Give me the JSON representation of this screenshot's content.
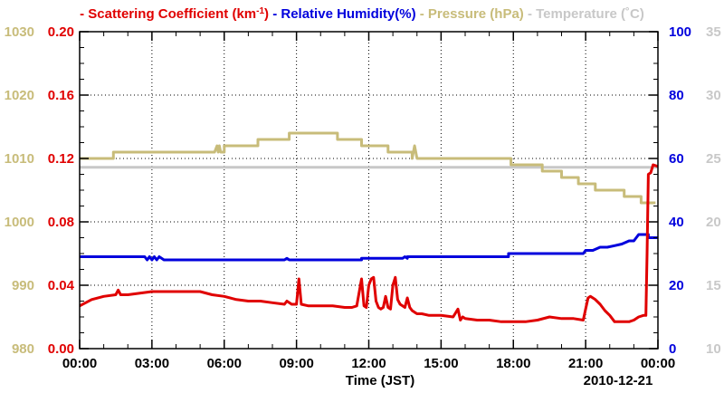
{
  "chart_data": {
    "type": "line",
    "title_items": [
      {
        "dash": "-",
        "text": "Scattering Coefficient (km",
        "sup": "-1",
        "close": ")",
        "color": "#e00000"
      },
      {
        "dash": "-",
        "text": "Relative Humidity(%)",
        "color": "#0000dd"
      },
      {
        "dash": "-",
        "text": "Pressure (hPa)",
        "color": "#c8bc7a"
      },
      {
        "dash": "-",
        "text": "Temperature (˚C)",
        "color": "#c8c8c8"
      }
    ],
    "xlabel": "Time (JST)",
    "date_label": "2010-12-21",
    "x_range": [
      0,
      24
    ],
    "x_ticks": [
      0,
      3,
      6,
      9,
      12,
      15,
      18,
      21,
      24
    ],
    "x_tick_labels": [
      "00:00",
      "03:00",
      "06:00",
      "09:00",
      "12:00",
      "15:00",
      "18:00",
      "21:00",
      "00:00"
    ],
    "axes": {
      "scattering": {
        "range": [
          0,
          0.2
        ],
        "ticks": [
          "0.00",
          "0.04",
          "0.08",
          "0.12",
          "0.16",
          "0.20"
        ],
        "color": "#e00000"
      },
      "pressure": {
        "range": [
          980,
          1030
        ],
        "ticks": [
          "980",
          "990",
          "1000",
          "1010",
          "1020",
          "1030"
        ],
        "color": "#c8bc7a"
      },
      "humidity": {
        "range": [
          0,
          100
        ],
        "ticks": [
          "0",
          "20",
          "40",
          "60",
          "80",
          "100"
        ],
        "color": "#0000dd"
      },
      "temperature": {
        "range": [
          10,
          35
        ],
        "ticks": [
          "10",
          "15",
          "20",
          "25",
          "30",
          "35"
        ],
        "color": "#c8c8c8"
      }
    },
    "series": [
      {
        "name": "Temperature",
        "axis": "temperature",
        "color": "#c8c8c8",
        "x": [
          0,
          24
        ],
        "y": [
          24.3,
          24.3
        ]
      },
      {
        "name": "Pressure",
        "axis": "pressure",
        "color": "#c8bc7a",
        "x": [
          0,
          1.4,
          1.4,
          5.6,
          5.7,
          5.75,
          5.8,
          5.85,
          6.0,
          6.0,
          7.4,
          7.4,
          8.7,
          8.7,
          10.7,
          10.7,
          11.7,
          11.7,
          12.8,
          12.8,
          13.8,
          13.8,
          13.9,
          14.0,
          14.1,
          14.1,
          15.0,
          15.0,
          16.0,
          16.0,
          17.9,
          17.9,
          19.2,
          19.2,
          20.0,
          20.0,
          20.7,
          20.7,
          21.4,
          21.4,
          21.7,
          21.7,
          22.6,
          22.6,
          23.3,
          23.3,
          23.9
        ],
        "y": [
          1010,
          1010,
          1011,
          1011,
          1012,
          1011,
          1012,
          1011,
          1011,
          1012,
          1012,
          1013,
          1013,
          1014,
          1014,
          1013,
          1013,
          1012,
          1012,
          1011,
          1011,
          1010,
          1012,
          1010,
          1010,
          1010,
          1010,
          1010,
          1010,
          1010,
          1010,
          1009,
          1009,
          1008,
          1008,
          1007,
          1007,
          1006,
          1006,
          1005,
          1005,
          1005,
          1005,
          1004,
          1004,
          1003,
          1003
        ]
      },
      {
        "name": "Relative Humidity",
        "axis": "humidity",
        "color": "#0000dd",
        "x": [
          0,
          2.7,
          2.8,
          2.9,
          3.0,
          3.1,
          3.2,
          3.3,
          3.5,
          3.5,
          8.5,
          8.6,
          8.7,
          8.7,
          11.7,
          11.7,
          13.4,
          13.5,
          13.6,
          13.6,
          17.8,
          17.8,
          20.9,
          21.0,
          21.3,
          21.6,
          21.9,
          22.2,
          22.5,
          22.8,
          23.0,
          23.2,
          23.4,
          23.6,
          23.6,
          24.0
        ],
        "y": [
          29,
          29,
          28,
          29,
          28,
          29,
          28,
          29,
          28,
          28,
          28,
          28.5,
          28,
          28,
          28,
          28.5,
          28.5,
          29,
          28.5,
          29,
          29,
          30,
          30,
          31,
          31,
          32,
          32,
          32.5,
          33,
          34,
          34,
          36,
          36,
          36,
          35,
          35
        ]
      },
      {
        "name": "Scattering Coefficient",
        "axis": "scattering",
        "color": "#e00000",
        "x": [
          0,
          0.5,
          1.0,
          1.5,
          1.6,
          1.7,
          2.0,
          2.5,
          3.0,
          3.5,
          4.0,
          4.5,
          5.0,
          5.5,
          6.0,
          6.5,
          7.0,
          7.5,
          8.0,
          8.5,
          8.6,
          8.8,
          9.0,
          9.1,
          9.2,
          9.5,
          10.0,
          10.5,
          11.0,
          11.3,
          11.5,
          11.7,
          11.8,
          11.9,
          12.0,
          12.1,
          12.2,
          12.3,
          12.4,
          12.5,
          12.6,
          12.7,
          12.8,
          12.9,
          13.0,
          13.1,
          13.2,
          13.3,
          13.4,
          13.5,
          13.6,
          13.7,
          13.8,
          13.9,
          14.0,
          14.2,
          14.5,
          15.0,
          15.5,
          15.7,
          15.8,
          15.9,
          16.0,
          16.5,
          17.0,
          17.5,
          18.0,
          18.5,
          19.0,
          19.5,
          20.0,
          20.5,
          20.9,
          21.0,
          21.1,
          21.2,
          21.4,
          21.6,
          21.8,
          22.0,
          22.2,
          22.5,
          22.8,
          23.0,
          23.2,
          23.4,
          23.5,
          23.55,
          23.6,
          23.7,
          23.8,
          24.0
        ],
        "y": [
          0.027,
          0.031,
          0.033,
          0.034,
          0.037,
          0.034,
          0.034,
          0.035,
          0.036,
          0.036,
          0.036,
          0.036,
          0.036,
          0.034,
          0.033,
          0.031,
          0.03,
          0.03,
          0.029,
          0.028,
          0.03,
          0.028,
          0.028,
          0.044,
          0.028,
          0.027,
          0.027,
          0.027,
          0.026,
          0.026,
          0.027,
          0.044,
          0.027,
          0.026,
          0.04,
          0.044,
          0.045,
          0.03,
          0.026,
          0.025,
          0.026,
          0.033,
          0.026,
          0.025,
          0.04,
          0.045,
          0.031,
          0.028,
          0.027,
          0.026,
          0.032,
          0.026,
          0.024,
          0.023,
          0.022,
          0.022,
          0.021,
          0.021,
          0.02,
          0.025,
          0.018,
          0.02,
          0.019,
          0.018,
          0.018,
          0.017,
          0.017,
          0.017,
          0.018,
          0.02,
          0.019,
          0.019,
          0.018,
          0.025,
          0.032,
          0.033,
          0.031,
          0.028,
          0.024,
          0.021,
          0.017,
          0.017,
          0.017,
          0.018,
          0.02,
          0.021,
          0.021,
          0.06,
          0.11,
          0.111,
          0.116,
          0.115
        ]
      }
    ]
  }
}
